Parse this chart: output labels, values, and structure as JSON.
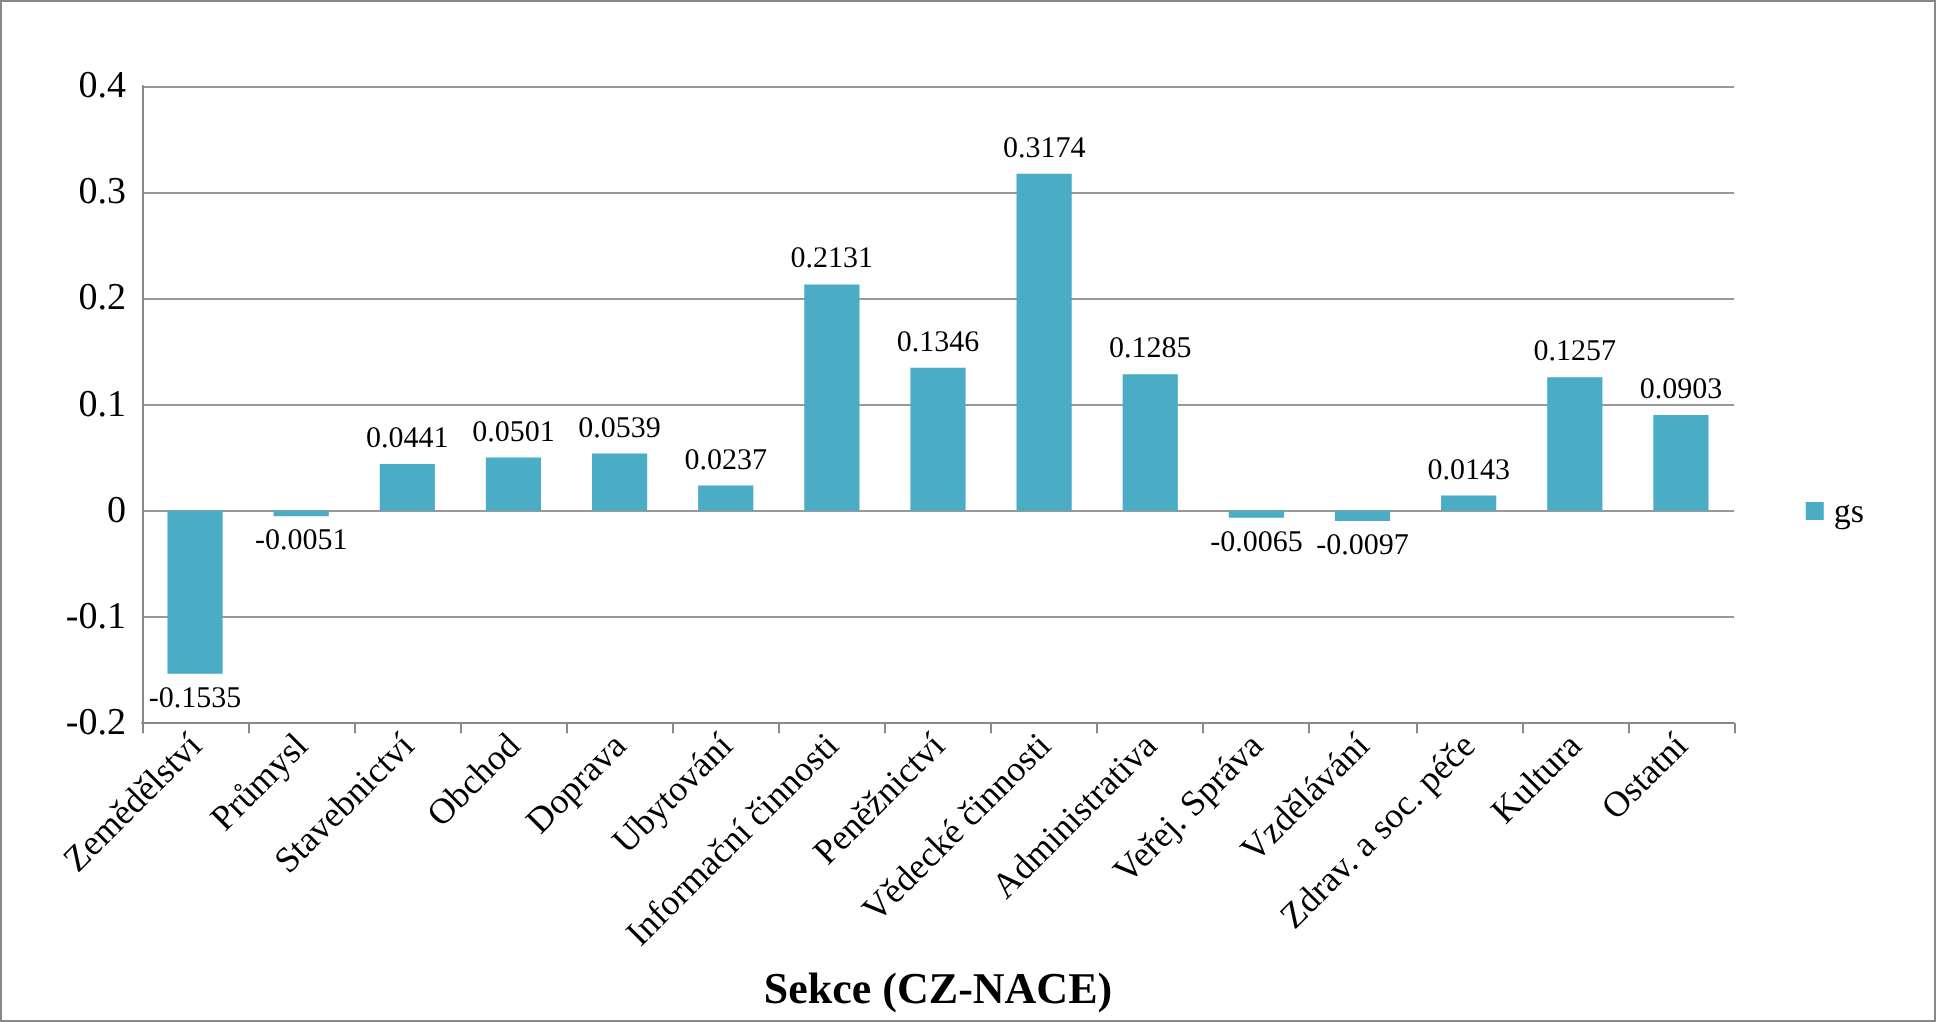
{
  "chart_data": {
    "type": "bar",
    "xlabel": "Sekce (CZ-NACE)",
    "categories": [
      "Zemědělství",
      "Průmysl",
      "Stavebnictví",
      "Obchod",
      "Doprava",
      "Ubytování",
      "Informační činnosti",
      "Peněžnictví",
      "Vědecké činnosti",
      "Administrativa",
      "Veřej. Správa",
      "Vzdělávání",
      "Zdrav. a soc. péče",
      "Kultura",
      "Ostatní"
    ],
    "series": [
      {
        "name": "gs",
        "color": "#4bacc6",
        "values": [
          -0.1535,
          -0.0051,
          0.0441,
          0.0501,
          0.0539,
          0.0237,
          0.2131,
          0.1346,
          0.3174,
          0.1285,
          -0.0065,
          -0.0097,
          0.0143,
          0.1257,
          0.0903
        ]
      }
    ],
    "data_labels": true,
    "ylim": [
      -0.2,
      0.4
    ],
    "yticks": [
      -0.2,
      -0.1,
      0,
      0.1,
      0.2,
      0.3,
      0.4
    ],
    "grid": "y",
    "legend": "right"
  }
}
